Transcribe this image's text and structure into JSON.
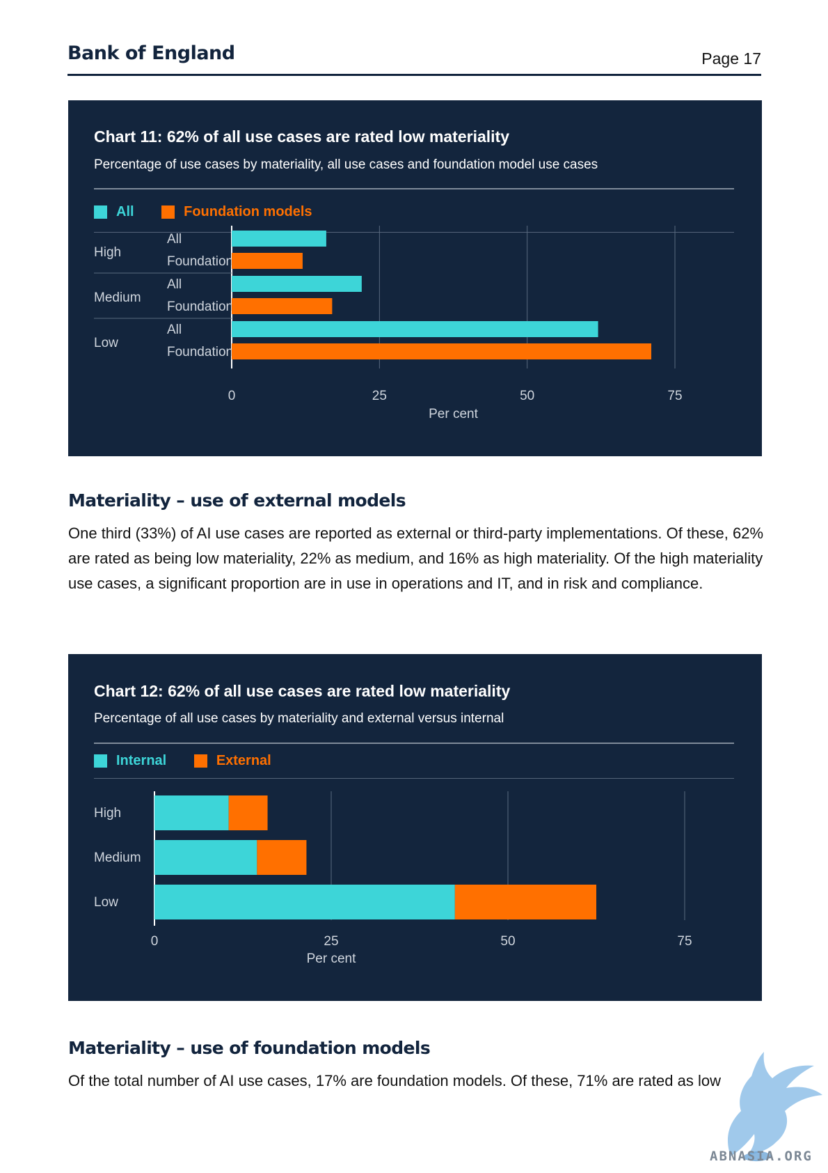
{
  "header": {
    "brand": "Bank of England",
    "page": "Page 17"
  },
  "chart11": {
    "title": "Chart 11: 62% of all use cases are rated low materiality",
    "subtitle": "Percentage of use cases by materiality, all use cases and foundation model use cases",
    "legend": [
      "All",
      "Foundation models"
    ],
    "xlabel": "Per cent",
    "colors": {
      "all": "#3dd5d8",
      "foundation": "#ff7000"
    }
  },
  "section1": {
    "heading": "Materiality – use of external models",
    "paragraph": "One third (33%) of AI use cases are reported as external or third-party implementations. Of these, 62% are rated as being low materiality, 22% as medium, and 16% as high materiality. Of the high materiality use cases, a significant proportion are in use in operations and IT, and in risk and compliance."
  },
  "chart12": {
    "title": "Chart 12: 62% of all use cases are rated low materiality",
    "subtitle": "Percentage of all use cases by materiality and external versus internal",
    "legend": [
      "Internal",
      "External"
    ],
    "xlabel": "Per cent",
    "colors": {
      "internal": "#3dd5d8",
      "external": "#ff7000"
    }
  },
  "section2": {
    "heading": "Materiality – use of foundation models",
    "paragraph": "Of the total number of AI use cases, 17% are foundation models. Of these, 71% are rated as low"
  },
  "watermark": {
    "text": "ABNASIA.ORG"
  },
  "chart_data": [
    {
      "type": "bar",
      "orientation": "horizontal",
      "title": "Chart 11: 62% of all use cases are rated low materiality",
      "subtitle": "Percentage of use cases by materiality, all use cases and foundation model use cases",
      "categories": [
        "High",
        "Medium",
        "Low"
      ],
      "sub_labels": [
        "All",
        "Foundation"
      ],
      "series": [
        {
          "name": "All",
          "values": [
            16,
            22,
            62
          ]
        },
        {
          "name": "Foundation models",
          "values": [
            12,
            17,
            71
          ]
        }
      ],
      "xlabel": "Per cent",
      "xlim": [
        0,
        75
      ],
      "xticks": [
        0,
        25,
        50,
        75
      ],
      "grid": true,
      "legend_position": "top-left"
    },
    {
      "type": "bar",
      "orientation": "horizontal",
      "stacked": true,
      "title": "Chart 12: 62% of all use cases are rated low materiality",
      "subtitle": "Percentage of all use cases by materiality and external versus internal",
      "categories": [
        "High",
        "Medium",
        "Low"
      ],
      "series": [
        {
          "name": "Internal",
          "values": [
            10.5,
            14.5,
            42.5
          ]
        },
        {
          "name": "External",
          "values": [
            5.5,
            7.0,
            20.0
          ]
        }
      ],
      "xlabel": "Per cent",
      "xlim": [
        0,
        75
      ],
      "xticks": [
        0,
        25,
        50,
        75
      ],
      "grid": true,
      "legend_position": "top-left"
    }
  ]
}
